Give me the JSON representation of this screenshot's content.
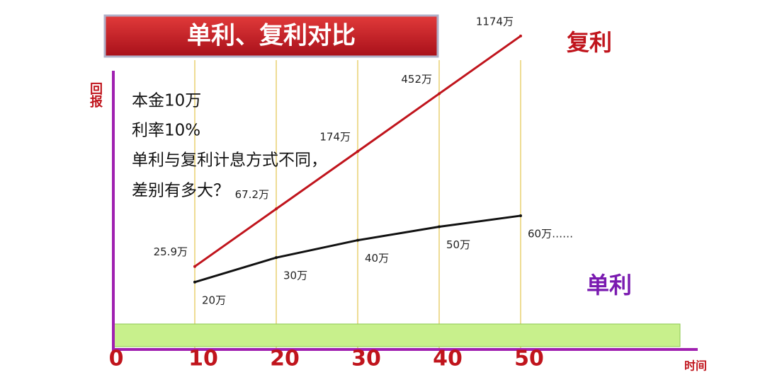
{
  "chart_data": {
    "type": "line",
    "title": "单利、复利对比",
    "notes": [
      "本金10万",
      "利率10%",
      "单利与复利计息方式不同，",
      "差别有多大？"
    ],
    "x_label": "时间",
    "y_label": "回报",
    "x": [
      10,
      20,
      30,
      40,
      50
    ],
    "xlim": [
      0,
      70
    ],
    "xticks": [
      0,
      10,
      20,
      30,
      40,
      50
    ],
    "ylim": [
      10,
      1500
    ],
    "log_y": true,
    "series": [
      {
        "name": "复利",
        "color": "#c0141c",
        "values": [
          25.9,
          67.2,
          174,
          452,
          1174
        ],
        "value_labels": [
          "25.9万",
          "67.2万",
          "174万",
          "452万",
          "1174万"
        ]
      },
      {
        "name": "单利",
        "color": "#111111",
        "values": [
          20,
          30,
          40,
          50,
          60
        ],
        "value_labels": [
          "20万",
          "30万",
          "40万",
          "50万",
          "60万……"
        ]
      }
    ]
  }
}
